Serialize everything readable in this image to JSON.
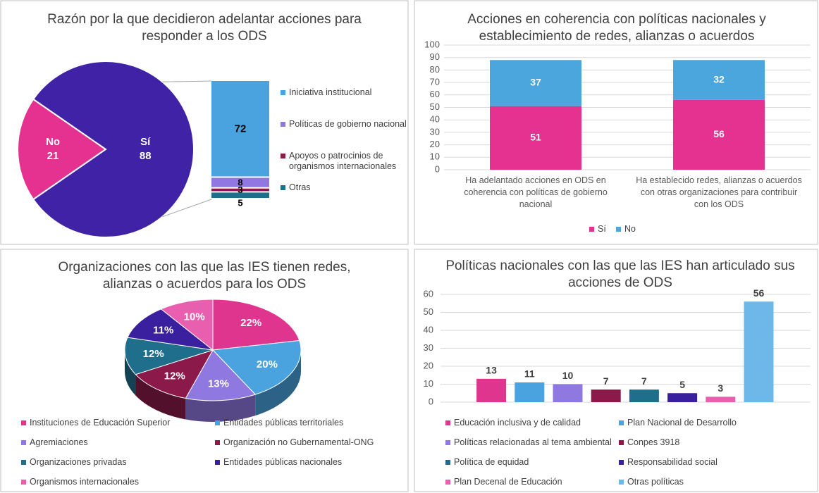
{
  "chart_data": [
    {
      "type": "bar-of-pie",
      "title": "Razón por la que decidieron adelantar acciones para responder a los ODS",
      "categories": [
        "No",
        "Sí"
      ],
      "values": [
        21,
        88
      ],
      "colors": [
        "#e5318f",
        "#3f22a6"
      ],
      "breakdown": {
        "categories": [
          "Iniciativa institucional",
          "Políticas de gobierno nacional",
          "Apoyos o patrocinios de organismos internacionales",
          "Otras"
        ],
        "values": [
          72,
          8,
          3,
          5
        ],
        "colors": [
          "#4aa3df",
          "#8f78e0",
          "#8b1a4a",
          "#1f6e8c"
        ]
      }
    },
    {
      "type": "stacked-bar",
      "title": "Acciones en coherencia con políticas nacionales y establecimiento de redes, alianzas o acuerdos",
      "categories": [
        "Ha adelantado acciones en ODS en coherencia con políticas de gobierno nacional",
        "Ha establecido redes, alianzas o acuerdos con otras organizaciones para contribuir con los ODS"
      ],
      "series": [
        {
          "name": "Sí",
          "color": "#e5318f",
          "values": [
            51,
            56
          ]
        },
        {
          "name": "No",
          "color": "#4aa6dc",
          "values": [
            37,
            32
          ]
        }
      ],
      "ylim": [
        0,
        100
      ],
      "yticks": [
        0,
        10,
        20,
        30,
        40,
        50,
        60,
        70,
        80,
        90,
        100
      ],
      "grid": true,
      "legend": "bottom"
    },
    {
      "type": "pie3d",
      "title": "Organizaciones con las que las IES tienen redes, alianzas o acuerdos para los ODS",
      "categories": [
        "Instituciones de Educación Superior",
        "Entidades públicas territoriales",
        "Agremiaciones",
        "Organización no Gubernamental-ONG",
        "Organizaciones privadas",
        "Entidades públicas nacionales",
        "Organismos internacionales"
      ],
      "values": [
        22,
        20,
        13,
        12,
        12,
        11,
        10
      ],
      "value_labels": [
        "22%",
        "20%",
        "13%",
        "12%",
        "12%",
        "11%",
        "10%"
      ],
      "colors": [
        "#e0358f",
        "#4aa3df",
        "#8f78e0",
        "#8b1a4a",
        "#1f6e8c",
        "#3a1f9e",
        "#e85fb0"
      ],
      "legend": "bottom"
    },
    {
      "type": "bar",
      "title": "Políticas nacionales con las que las IES han articulado sus acciones de ODS",
      "categories": [
        "Educación inclusiva y de calidad",
        "Plan Nacional de Desarrollo",
        "Políticas relacionadas al tema ambiental",
        "Conpes 3918",
        "Política de equidad",
        "Responsabilidad social",
        "Plan Decenal de Educación",
        "Otras políticas"
      ],
      "values": [
        13,
        11,
        10,
        7,
        7,
        5,
        3,
        56
      ],
      "colors": [
        "#e0358f",
        "#4aa3df",
        "#8f78e0",
        "#8b1a4a",
        "#1f6e8c",
        "#3a1f9e",
        "#e85fb0",
        "#6db8e8"
      ],
      "ylim": [
        0,
        60
      ],
      "yticks": [
        0,
        10,
        20,
        30,
        40,
        50,
        60
      ],
      "grid": true,
      "legend": "bottom"
    }
  ]
}
